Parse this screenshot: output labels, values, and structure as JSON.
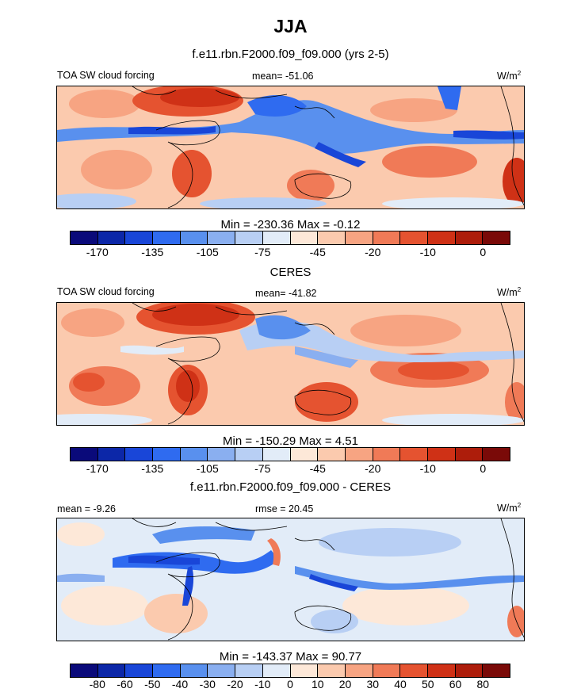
{
  "title": "JJA",
  "colormap_abs": [
    "#0a0a7a",
    "#0c27a8",
    "#1946d8",
    "#2f6bf0",
    "#5990ee",
    "#8aaff0",
    "#b8cff4",
    "#e2ecf8",
    "#fde8d8",
    "#fbcaae",
    "#f7a482",
    "#f07a57",
    "#e55330",
    "#cf3116",
    "#ad1d0b",
    "#7a0a08"
  ],
  "colormap_diff": [
    "#0a0a7a",
    "#0c27a8",
    "#1946d8",
    "#2f6bf0",
    "#5990ee",
    "#8aaff0",
    "#b8cff4",
    "#e2ecf8",
    "#fde8d8",
    "#fbcaae",
    "#f7a482",
    "#f07a57",
    "#e55330",
    "#cf3116",
    "#ad1d0b",
    "#7a0a08"
  ],
  "chart_data": [
    {
      "type": "heatmap",
      "title": "f.e11.rbn.F2000.f09_f09.000 (yrs 2-5)",
      "variable": "TOA SW cloud forcing",
      "mean_text": "mean= -51.06",
      "units": "W/m",
      "units_sup": "2",
      "minmax_text": "Min = -230.36 Max =  -0.12",
      "min": -230.36,
      "max": -0.12,
      "mean": -51.06,
      "colorbar_labels": [
        "-170",
        "-135",
        "-105",
        "-75",
        "-45",
        "-20",
        "-10",
        "0"
      ]
    },
    {
      "type": "heatmap",
      "title": "CERES",
      "variable": "TOA SW cloud forcing",
      "mean_text": "mean= -41.82",
      "units": "W/m",
      "units_sup": "2",
      "minmax_text": "Min = -150.29 Max =   4.51",
      "min": -150.29,
      "max": 4.51,
      "mean": -41.82,
      "colorbar_labels": [
        "-170",
        "-135",
        "-105",
        "-75",
        "-45",
        "-20",
        "-10",
        "0"
      ]
    },
    {
      "type": "heatmap",
      "title": "f.e11.rbn.F2000.f09_f09.000 - CERES",
      "mean_text": "mean =  -9.26",
      "rmse_text": "rmse =  20.45",
      "units": "W/m",
      "units_sup": "2",
      "minmax_text": "Min = -143.37 Max =  90.77",
      "min": -143.37,
      "max": 90.77,
      "mean": -9.26,
      "rmse": 20.45,
      "colorbar_labels": [
        "-80",
        "-60",
        "-50",
        "-40",
        "-30",
        "-20",
        "-10",
        "0",
        "10",
        "20",
        "30",
        "40",
        "50",
        "60",
        "80"
      ]
    }
  ]
}
